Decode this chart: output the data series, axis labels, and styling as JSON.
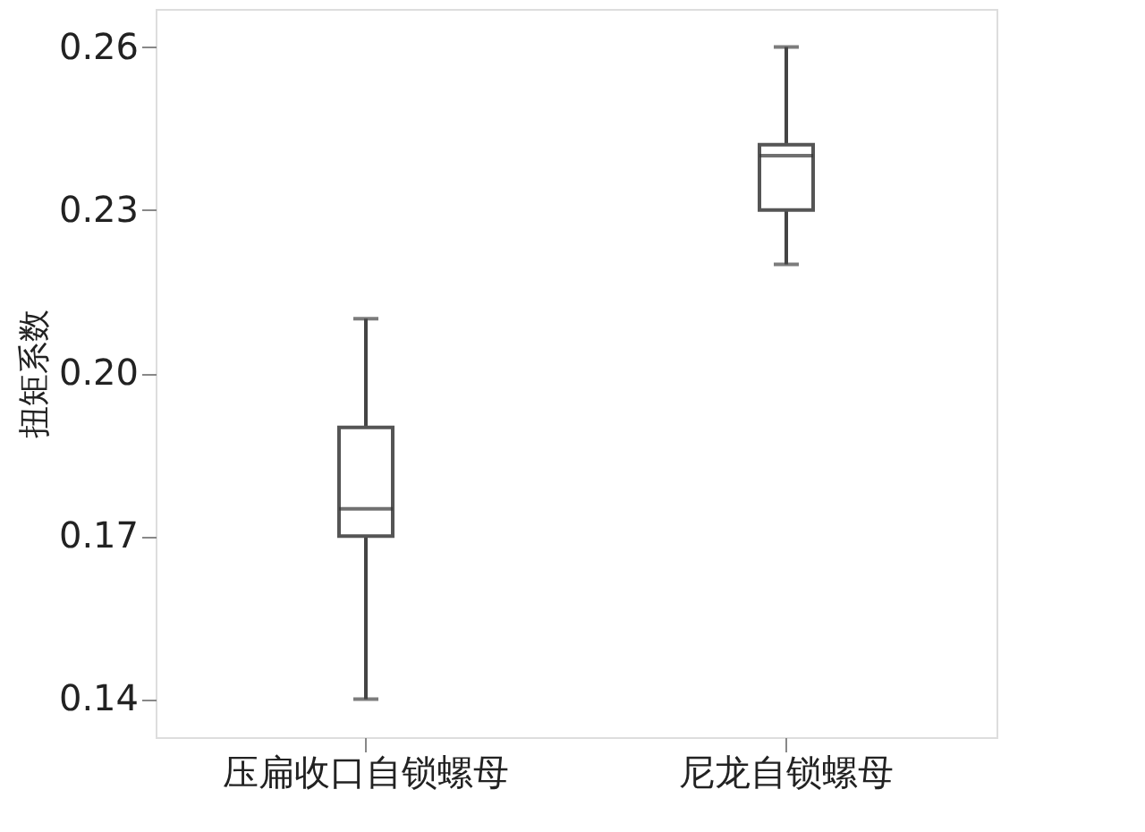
{
  "chart_data": {
    "type": "box",
    "ylabel": "扭矩系数",
    "categories": [
      "压扁收口自锁螺母",
      "尼龙自锁螺母"
    ],
    "boxes": [
      {
        "low": 0.14,
        "q1": 0.17,
        "median": 0.175,
        "q3": 0.19,
        "high": 0.21
      },
      {
        "low": 0.22,
        "q1": 0.23,
        "median": 0.24,
        "q3": 0.242,
        "high": 0.26
      }
    ],
    "color": "#ffffff",
    "ylim": [
      0.133,
      0.267
    ],
    "yticks": [
      {
        "value": 0.14,
        "label": "0.14"
      },
      {
        "value": 0.17,
        "label": "0.17"
      },
      {
        "value": 0.2,
        "label": "0.20"
      },
      {
        "value": 0.23,
        "label": "0.23"
      },
      {
        "value": 0.26,
        "label": "0.26"
      }
    ],
    "grid": false
  }
}
